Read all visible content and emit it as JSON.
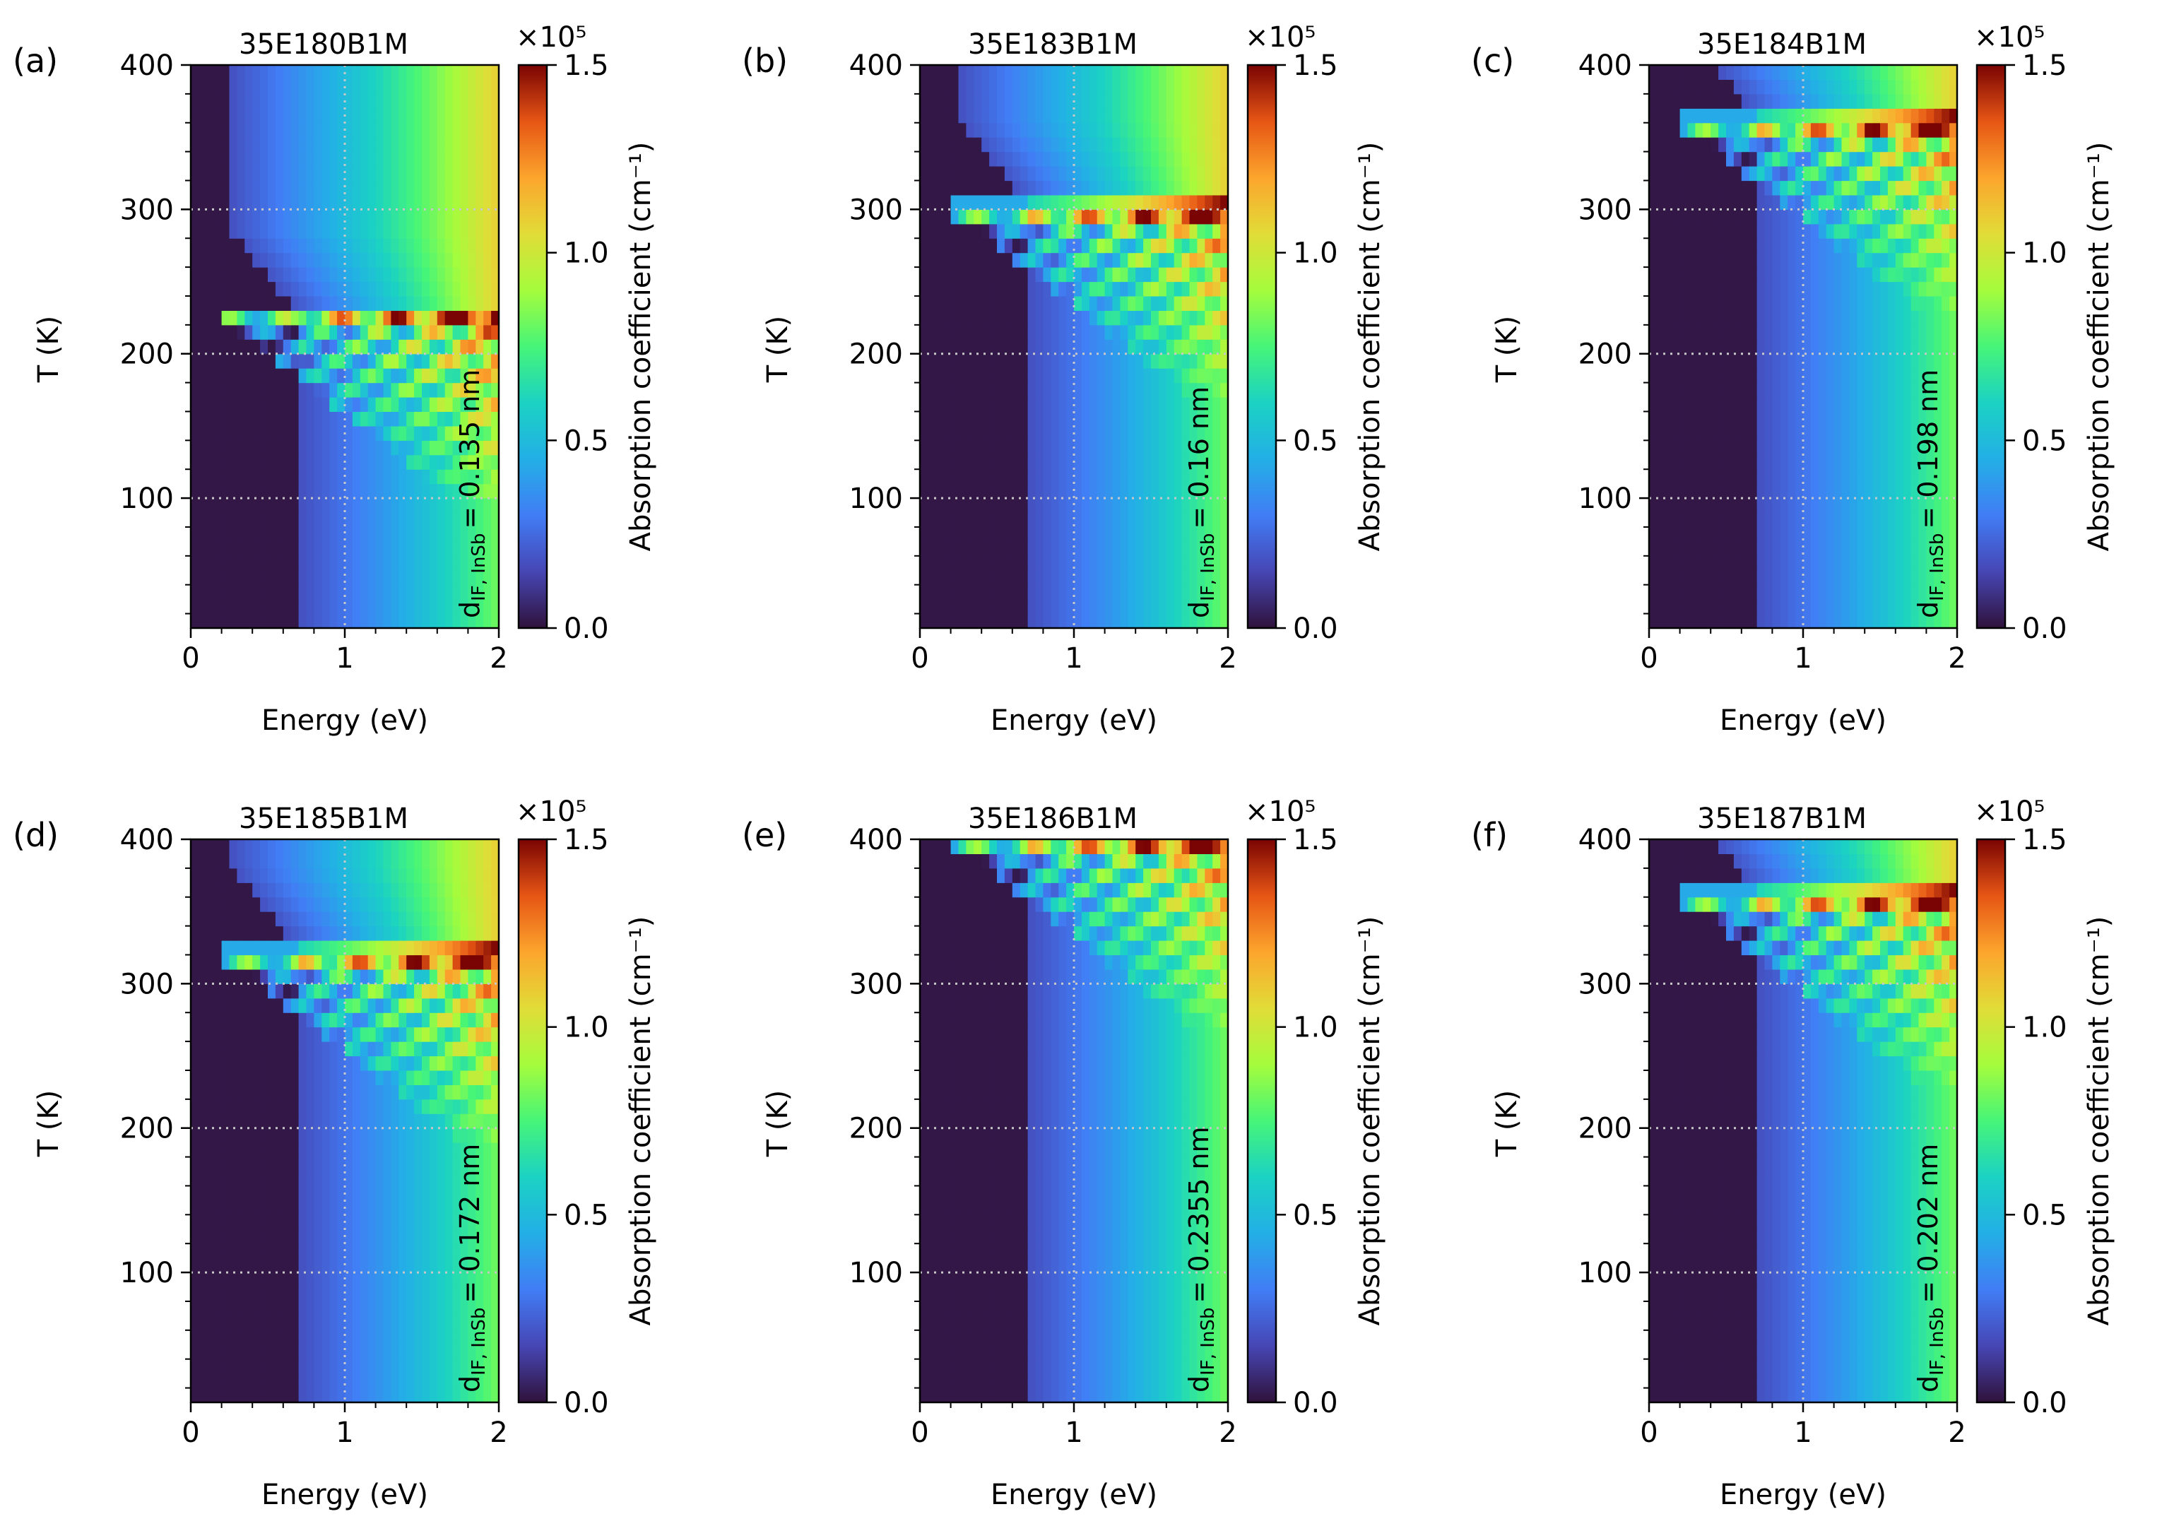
{
  "figure": {
    "shared_x_label": "Energy (eV)",
    "shared_y_label": "T (K)",
    "colorbar_label": "Absorption coefficient (cm⁻¹)",
    "colorbar_multiplier": "×10⁵",
    "annotation_prefix": "d",
    "annotation_subscript": "IF, InSb"
  },
  "chart_data": [
    {
      "panel": "(a)",
      "title": "35E180B1M",
      "type": "heatmap",
      "xlabel": "Energy (eV)",
      "ylabel": "T (K)",
      "xlim": [
        0,
        2
      ],
      "ylim": [
        10,
        400
      ],
      "xticks": [
        "0",
        "1",
        "2"
      ],
      "yticks": [
        "100",
        "200",
        "300",
        "400"
      ],
      "reference_lines": {
        "x": [
          1
        ],
        "y": [
          100,
          200,
          300
        ]
      },
      "colorbar": {
        "label": "Absorption coefficient (cm⁻¹)",
        "multiplier": "×10⁵",
        "range": [
          0,
          1.5
        ],
        "ticks": [
          "0.0",
          "0.5",
          "1.0",
          "1.5"
        ]
      },
      "annotation": "d_IF,InSb = 0.135 nm",
      "annotation_value": "= 0.135 nm",
      "transition_T": 225,
      "edge_energy_low_T": 0.72
    },
    {
      "panel": "(b)",
      "title": "35E183B1M",
      "type": "heatmap",
      "xlabel": "Energy (eV)",
      "ylabel": "T (K)",
      "xlim": [
        0,
        2
      ],
      "ylim": [
        10,
        400
      ],
      "xticks": [
        "0",
        "1",
        "2"
      ],
      "yticks": [
        "100",
        "200",
        "300",
        "400"
      ],
      "reference_lines": {
        "x": [
          1
        ],
        "y": [
          100,
          200,
          300
        ]
      },
      "colorbar": {
        "label": "Absorption coefficient (cm⁻¹)",
        "multiplier": "×10⁵",
        "range": [
          0,
          1.5
        ],
        "ticks": [
          "0.0",
          "0.5",
          "1.0",
          "1.5"
        ]
      },
      "annotation": "d_IF,InSb = 0.16 nm",
      "annotation_value": "= 0.16 nm",
      "transition_T": 300,
      "edge_energy_low_T": 0.72
    },
    {
      "panel": "(c)",
      "title": "35E184B1M",
      "type": "heatmap",
      "xlabel": "Energy (eV)",
      "ylabel": "T (K)",
      "xlim": [
        0,
        2
      ],
      "ylim": [
        10,
        400
      ],
      "xticks": [
        "0",
        "1",
        "2"
      ],
      "yticks": [
        "100",
        "200",
        "300",
        "400"
      ],
      "reference_lines": {
        "x": [
          1
        ],
        "y": [
          100,
          200,
          300
        ]
      },
      "colorbar": {
        "label": "Absorption coefficient (cm⁻¹)",
        "multiplier": "×10⁵",
        "range": [
          0,
          1.5
        ],
        "ticks": [
          "0.0",
          "0.5",
          "1.0",
          "1.5"
        ]
      },
      "annotation": "d_IF,InSb = 0.198 nm",
      "annotation_value": "= 0.198 nm",
      "transition_T": 360,
      "edge_energy_low_T": 0.72
    },
    {
      "panel": "(d)",
      "title": "35E185B1M",
      "type": "heatmap",
      "xlabel": "Energy (eV)",
      "ylabel": "T (K)",
      "xlim": [
        0,
        2
      ],
      "ylim": [
        10,
        400
      ],
      "xticks": [
        "0",
        "1",
        "2"
      ],
      "yticks": [
        "100",
        "200",
        "300",
        "400"
      ],
      "reference_lines": {
        "x": [
          1
        ],
        "y": [
          100,
          200,
          300
        ]
      },
      "colorbar": {
        "label": "Absorption coefficient (cm⁻¹)",
        "multiplier": "×10⁵",
        "range": [
          0,
          1.5
        ],
        "ticks": [
          "0.0",
          "0.5",
          "1.0",
          "1.5"
        ]
      },
      "annotation": "d_IF,InSb = 0.172 nm",
      "annotation_value": "= 0.172 nm",
      "transition_T": 320,
      "edge_energy_low_T": 0.72
    },
    {
      "panel": "(e)",
      "title": "35E186B1M",
      "type": "heatmap",
      "xlabel": "Energy (eV)",
      "ylabel": "T (K)",
      "xlim": [
        0,
        2
      ],
      "ylim": [
        10,
        400
      ],
      "xticks": [
        "0",
        "1",
        "2"
      ],
      "yticks": [
        "100",
        "200",
        "300",
        "400"
      ],
      "reference_lines": {
        "x": [
          1
        ],
        "y": [
          100,
          200,
          300
        ]
      },
      "colorbar": {
        "label": "Absorption coefficient (cm⁻¹)",
        "multiplier": "×10⁵",
        "range": [
          0,
          1.5
        ],
        "ticks": [
          "0.0",
          "0.5",
          "1.0",
          "1.5"
        ]
      },
      "annotation": "d_IF,InSb = 0.2355 nm",
      "annotation_value": "= 0.2355 nm",
      "transition_T": 400,
      "edge_energy_low_T": 0.72
    },
    {
      "panel": "(f)",
      "title": "35E187B1M",
      "type": "heatmap",
      "xlabel": "Energy (eV)",
      "ylabel": "T (K)",
      "xlim": [
        0,
        2
      ],
      "ylim": [
        10,
        400
      ],
      "xticks": [
        "0",
        "1",
        "2"
      ],
      "yticks": [
        "100",
        "200",
        "300",
        "400"
      ],
      "reference_lines": {
        "x": [
          1
        ],
        "y": [
          100,
          200,
          300
        ]
      },
      "colorbar": {
        "label": "Absorption coefficient (cm⁻¹)",
        "multiplier": "×10⁵",
        "range": [
          0,
          1.5
        ],
        "ticks": [
          "0.0",
          "0.5",
          "1.0",
          "1.5"
        ]
      },
      "annotation": "d_IF,InSb = 0.202 nm",
      "annotation_value": "= 0.202 nm",
      "transition_T": 360,
      "edge_energy_low_T": 0.72
    }
  ]
}
